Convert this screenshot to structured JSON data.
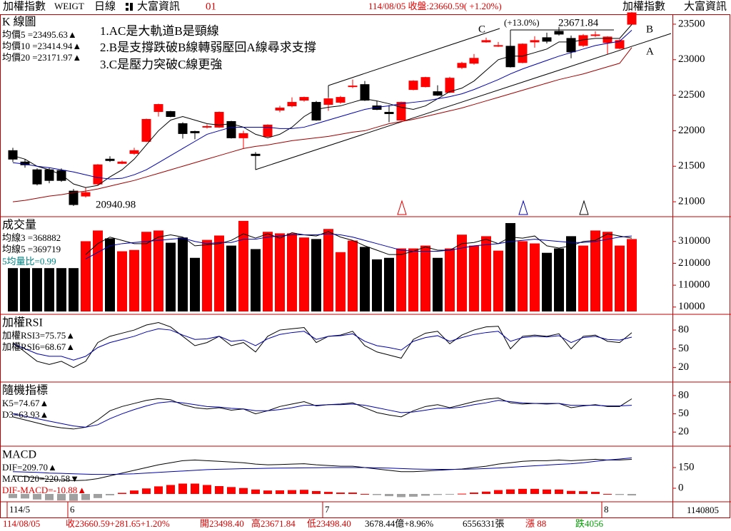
{
  "header": {
    "title": "加權指數",
    "code": "WEIGT",
    "period": "日線",
    "source": "大富資訊",
    "number": "01",
    "quote": "114/08/05 收盤:23660.59( +1.20%)",
    "right_title": "加權指數",
    "right_source": "大富資訊"
  },
  "status": {
    "date": "114/08/05",
    "close": "收23660.59+281.65+1.20%",
    "open": "開23498.40",
    "high": "高23671.84",
    "low": "低23498.40",
    "amount": "3678.44億+8.96%",
    "volume": "6556331張",
    "up": "漲 88",
    "down": "跌4056"
  },
  "date_axis": {
    "labels": [
      {
        "index": 0,
        "label": "114/5"
      },
      {
        "index": 5,
        "label": "6"
      },
      {
        "index": 26,
        "label": "7"
      },
      {
        "index": 49,
        "label": "8"
      }
    ],
    "end": "1140805"
  },
  "chart_data": [
    {
      "type": "candlestick",
      "title": "K 線圖",
      "up_color": "#ff0000",
      "down_color": "#000000",
      "annotations": [
        "1.AC是大軌道B是頸線",
        "2.B是支撐跌破B線轉弱壓回A線尋求支撐",
        "3.C是壓力突破C線更強",
        "C",
        "B",
        "A",
        "(+13.0%)",
        "23671.84",
        "20940.98"
      ],
      "open": [
        21720,
        21560,
        21450,
        21450,
        21440,
        21150,
        21080,
        21250,
        21600,
        21540,
        21680,
        21850,
        22270,
        22270,
        22100,
        21990,
        22050,
        22050,
        22130,
        21900,
        21670,
        21920,
        22290,
        22350,
        22430,
        22400,
        22370,
        22400,
        22620,
        22650,
        22350,
        22260,
        22150,
        22580,
        22620,
        22550,
        22540,
        22890,
        22950,
        23250,
        23190,
        23190,
        22960,
        23250,
        23310,
        23400,
        23300,
        23200,
        23340,
        23240,
        23160,
        23498.4
      ],
      "high": [
        21760,
        21600,
        21470,
        21480,
        21470,
        21180,
        21200,
        21530,
        21640,
        21580,
        21760,
        22170,
        22380,
        22280,
        22120,
        22000,
        22090,
        22270,
        22140,
        22000,
        21700,
        22090,
        22350,
        22470,
        22480,
        22420,
        22470,
        22490,
        22720,
        22700,
        22420,
        22360,
        22410,
        22710,
        22760,
        22640,
        22760,
        22970,
        23080,
        23310,
        23250,
        23210,
        23230,
        23330,
        23380,
        23460,
        23340,
        23360,
        23400,
        23330,
        23290,
        23671.84
      ],
      "low": [
        21560,
        21480,
        21230,
        21260,
        21280,
        20940.98,
        21060,
        21230,
        21560,
        21530,
        21660,
        21840,
        22200,
        22190,
        21890,
        21880,
        22030,
        22040,
        21890,
        21750,
        21450,
        21910,
        22260,
        22330,
        22410,
        22140,
        22280,
        22380,
        22600,
        22420,
        22290,
        22120,
        22140,
        22570,
        22610,
        22490,
        22530,
        22870,
        22930,
        23240,
        23180,
        22890,
        22950,
        23170,
        23230,
        23340,
        23020,
        23180,
        23320,
        23080,
        23150,
        23498.4
      ],
      "close": [
        21600,
        21520,
        21250,
        21300,
        21300,
        20960,
        21130,
        21520,
        21580,
        21560,
        21720,
        22160,
        22370,
        22200,
        21960,
        21970,
        22060,
        22260,
        21900,
        21960,
        21650,
        22080,
        22320,
        22400,
        22470,
        22150,
        22450,
        22470,
        22630,
        22430,
        22300,
        22240,
        22400,
        22700,
        22750,
        22500,
        22740,
        22950,
        23020,
        23270,
        23200,
        22900,
        23220,
        23270,
        23260,
        23360,
        23110,
        23340,
        23350,
        23320,
        23270,
        23660.59
      ],
      "series": [
        {
          "name": "均價5 =23495.63▲",
          "color": "#000000",
          "values": [
            21650,
            21600,
            21500,
            21450,
            21380,
            21250,
            21200,
            21230,
            21350,
            21450,
            21600,
            21800,
            22000,
            22150,
            22200,
            22150,
            22100,
            22080,
            22100,
            22050,
            21950,
            21900,
            21950,
            22050,
            22200,
            22300,
            22330,
            22350,
            22400,
            22450,
            22420,
            22380,
            22330,
            22300,
            22350,
            22450,
            22550,
            22600,
            22700,
            22850,
            23000,
            23050,
            23050,
            23100,
            23150,
            23250,
            23250,
            23280,
            23300,
            23300,
            23300,
            23495.63
          ]
        },
        {
          "name": "均價10 =23414.94▲",
          "color": "#0000aa",
          "values": [
            21550,
            21530,
            21500,
            21480,
            21450,
            21420,
            21380,
            21340,
            21320,
            21330,
            21380,
            21450,
            21550,
            21650,
            21750,
            21850,
            21950,
            22000,
            22050,
            22050,
            22050,
            22050,
            22030,
            22030,
            22050,
            22100,
            22150,
            22200,
            22250,
            22300,
            22330,
            22350,
            22380,
            22400,
            22420,
            22450,
            22480,
            22520,
            22580,
            22650,
            22720,
            22800,
            22870,
            22930,
            22990,
            23050,
            23100,
            23150,
            23200,
            23230,
            23260,
            23414.94
          ]
        },
        {
          "name": "均價20 =23171.97▲",
          "color": "#a00000",
          "values": [
            21000,
            21020,
            21050,
            21080,
            21100,
            21130,
            21150,
            21180,
            21220,
            21260,
            21300,
            21350,
            21400,
            21450,
            21500,
            21550,
            21600,
            21650,
            21700,
            21750,
            21780,
            21800,
            21830,
            21860,
            21880,
            21900,
            21920,
            21950,
            21980,
            22000,
            22050,
            22100,
            22130,
            22160,
            22200,
            22240,
            22280,
            22320,
            22370,
            22420,
            22470,
            22520,
            22570,
            22620,
            22670,
            22720,
            22760,
            22800,
            22850,
            22900,
            22950,
            23171.97
          ]
        }
      ],
      "ylim": [
        20800,
        23640
      ],
      "yticks": [
        23500,
        23000,
        22500,
        22000,
        21500,
        21000
      ]
    },
    {
      "type": "volume",
      "title": "成交量",
      "ratio_label": "5均量比=0.99",
      "values": [
        188000,
        188000,
        188000,
        188000,
        188000,
        188000,
        311000,
        360000,
        324000,
        265000,
        271000,
        354000,
        360000,
        304000,
        328000,
        235000,
        317000,
        337000,
        291000,
        404000,
        275000,
        354000,
        347000,
        347000,
        328000,
        321000,
        367000,
        261000,
        314000,
        285000,
        228000,
        235000,
        278000,
        278000,
        291000,
        235000,
        278000,
        341000,
        291000,
        334000,
        268000,
        394000,
        311000,
        301000,
        258000,
        278000,
        334000,
        291000,
        360000,
        354000,
        291000,
        321000
      ],
      "series": [
        {
          "name": "均線3 =368882",
          "color": "#000000",
          "values": [
            null,
            null,
            null,
            null,
            null,
            null,
            250000,
            300000,
            330000,
            315000,
            300000,
            300000,
            330000,
            340000,
            330000,
            290000,
            295000,
            300000,
            315000,
            345000,
            325000,
            345000,
            325000,
            350000,
            340000,
            335000,
            355000,
            330000,
            315000,
            290000,
            270000,
            250000,
            250000,
            265000,
            285000,
            270000,
            270000,
            300000,
            305000,
            320000,
            300000,
            330000,
            325000,
            335000,
            290000,
            280000,
            290000,
            310000,
            315000,
            345000,
            335000,
            325000
          ]
        },
        {
          "name": "均線5 =369719",
          "color": "#0000aa",
          "values": [
            null,
            null,
            null,
            null,
            null,
            null,
            230000,
            260000,
            290000,
            300000,
            305000,
            310000,
            315000,
            320000,
            325000,
            310000,
            300000,
            305000,
            305000,
            320000,
            320000,
            330000,
            335000,
            340000,
            340000,
            340000,
            345000,
            340000,
            330000,
            315000,
            300000,
            285000,
            270000,
            265000,
            265000,
            265000,
            270000,
            280000,
            290000,
            295000,
            300000,
            310000,
            315000,
            320000,
            315000,
            310000,
            305000,
            305000,
            310000,
            320000,
            330000,
            335000
          ]
        }
      ],
      "ylim": [
        -20000,
        420000
      ],
      "yticks": [
        310000,
        210000,
        110000,
        10000
      ]
    },
    {
      "type": "line",
      "title": "加權RSI",
      "series": [
        {
          "name": "加權RSI3=75.75▲",
          "color": "#000000",
          "values": [
            60,
            45,
            30,
            25,
            30,
            20,
            30,
            60,
            70,
            75,
            80,
            88,
            92,
            85,
            70,
            55,
            60,
            70,
            55,
            60,
            45,
            70,
            80,
            82,
            84,
            60,
            70,
            72,
            78,
            55,
            45,
            40,
            35,
            65,
            75,
            78,
            58,
            72,
            80,
            85,
            86,
            50,
            70,
            72,
            70,
            74,
            50,
            70,
            72,
            62,
            60,
            75.75
          ]
        },
        {
          "name": "加權RSI6=68.67▲",
          "color": "#0000aa",
          "values": [
            58,
            50,
            42,
            38,
            38,
            32,
            38,
            52,
            60,
            65,
            70,
            77,
            82,
            80,
            72,
            65,
            66,
            70,
            62,
            64,
            55,
            66,
            73,
            76,
            78,
            65,
            70,
            71,
            74,
            62,
            55,
            52,
            48,
            62,
            68,
            71,
            62,
            68,
            73,
            76,
            78,
            62,
            68,
            70,
            69,
            71,
            60,
            68,
            70,
            65,
            64,
            68.67
          ]
        }
      ],
      "ylim": [
        -2,
        104
      ],
      "yticks": [
        80,
        50,
        20
      ]
    },
    {
      "type": "line",
      "title": "隨機指標",
      "series": [
        {
          "name": "K5=74.67▲",
          "color": "#000000",
          "values": [
            45,
            40,
            35,
            30,
            27,
            25,
            28,
            40,
            55,
            62,
            67,
            72,
            75,
            73,
            65,
            60,
            58,
            60,
            56,
            58,
            50,
            55,
            62,
            66,
            70,
            63,
            65,
            66,
            68,
            60,
            52,
            48,
            45,
            55,
            62,
            65,
            60,
            65,
            70,
            74,
            76,
            68,
            66,
            67,
            66,
            67,
            60,
            63,
            65,
            62,
            62,
            74.67
          ]
        },
        {
          "name": "D3=63.93▲",
          "color": "#0000aa",
          "values": [
            50,
            46,
            42,
            38,
            34,
            30,
            28,
            32,
            42,
            50,
            57,
            63,
            68,
            70,
            68,
            65,
            62,
            61,
            59,
            58,
            55,
            55,
            57,
            60,
            64,
            64,
            65,
            65,
            66,
            64,
            60,
            56,
            52,
            53,
            56,
            59,
            59,
            61,
            65,
            68,
            72,
            70,
            68,
            67,
            67,
            67,
            64,
            64,
            64,
            63,
            63,
            63.93
          ]
        }
      ],
      "ylim": [
        -2,
        101
      ],
      "yticks": [
        80,
        50,
        20
      ]
    },
    {
      "type": "macd",
      "title": "MACD",
      "hist_up": "#ff0000",
      "hist_down": "#a0a0a0",
      "series": [
        {
          "name": "DIF=209.70▲",
          "color": "#000000",
          "values": [
            90,
            85,
            75,
            65,
            60,
            55,
            58,
            70,
            90,
            110,
            130,
            150,
            170,
            185,
            200,
            205,
            200,
            195,
            190,
            185,
            175,
            170,
            172,
            175,
            178,
            170,
            165,
            160,
            160,
            150,
            140,
            130,
            120,
            120,
            125,
            130,
            135,
            140,
            150,
            160,
            175,
            185,
            195,
            200,
            200,
            205,
            200,
            205,
            210,
            205,
            205,
            209.7
          ]
        },
        {
          "name": "MACD20=220.58▼",
          "color": "#0000aa",
          "values": [
            120,
            118,
            115,
            110,
            108,
            105,
            102,
            100,
            100,
            102,
            105,
            110,
            115,
            120,
            125,
            130,
            135,
            138,
            140,
            142,
            143,
            145,
            146,
            147,
            148,
            149,
            150,
            150,
            150,
            150,
            148,
            146,
            143,
            140,
            138,
            137,
            137,
            138,
            140,
            143,
            147,
            152,
            158,
            163,
            168,
            173,
            178,
            185,
            195,
            205,
            212,
            220.58
          ]
        }
      ],
      "histogram": {
        "name": "DIF-MACD=-10.88▲",
        "values": [
          -30,
          -33,
          -40,
          -45,
          -48,
          -50,
          -44,
          -30,
          -10,
          8,
          25,
          40,
          55,
          65,
          75,
          75,
          65,
          57,
          50,
          43,
          32,
          25,
          26,
          28,
          30,
          21,
          15,
          10,
          10,
          0,
          -8,
          -16,
          -23,
          -20,
          -13,
          -7,
          -2,
          2,
          10,
          17,
          28,
          33,
          37,
          37,
          32,
          32,
          22,
          20,
          15,
          0,
          -7,
          -10.88
        ]
      },
      "ylim": [
        -93,
        300
      ],
      "yticks": [
        150,
        0
      ]
    }
  ]
}
